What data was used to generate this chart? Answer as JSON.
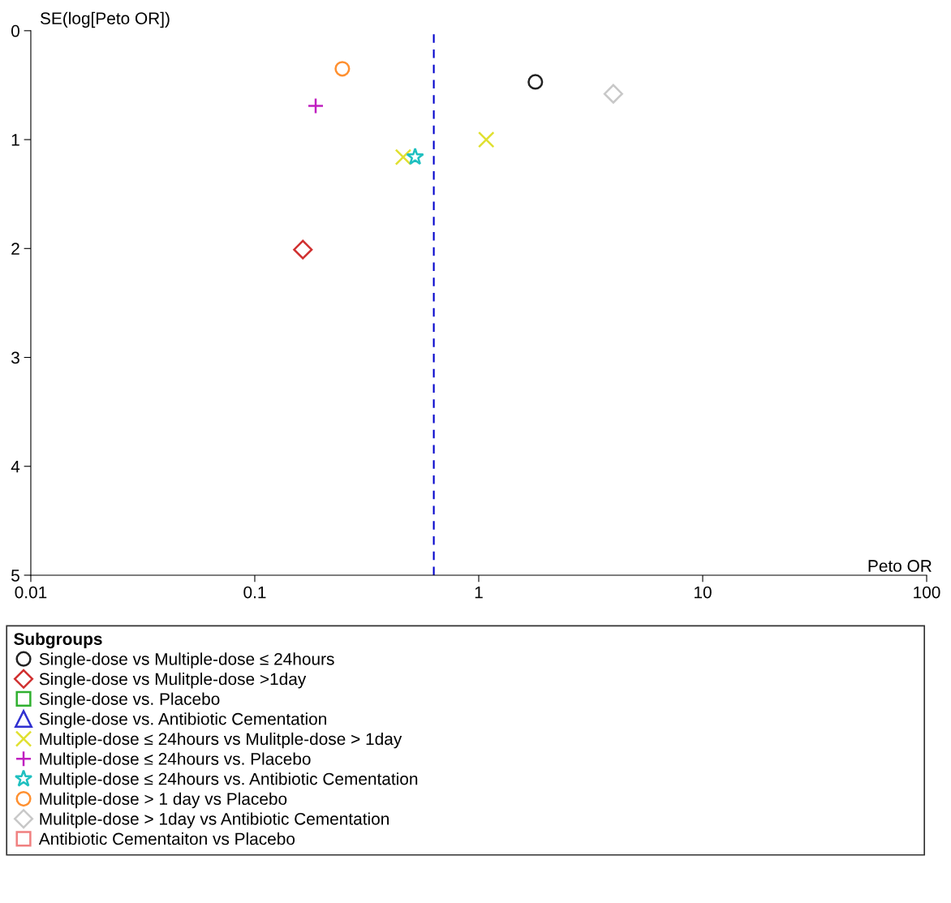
{
  "chart_data": {
    "type": "scatter",
    "xlabel": "Peto OR",
    "ylabel": "SE(log[Peto OR])",
    "legend_title": "Subgroups",
    "legend": "bottom",
    "log": "x",
    "grid": false,
    "xlim": [
      0.01,
      100
    ],
    "xticks": [
      0.01,
      0.1,
      1,
      10,
      100
    ],
    "ylim": [
      5,
      0
    ],
    "yticks": [
      0,
      1,
      2,
      3,
      4,
      5
    ],
    "ref_lines": [
      {
        "axis": "x",
        "value": 0.63,
        "color": "#0000cc",
        "line_style": "dashed"
      }
    ],
    "series": [
      {
        "name": "Single-dose vs Multiple-dose ≤ 24hours",
        "color": "#222222",
        "marker": "circle",
        "x": [
          1.79
        ],
        "values": [
          0.47
        ]
      },
      {
        "name": "Single-dose vs Mulitple-dose >1day",
        "color": "#d03030",
        "marker": "diamond",
        "x": [
          0.164
        ],
        "values": [
          2.01
        ]
      },
      {
        "name": "Single-dose vs. Placebo",
        "color": "#30b030",
        "marker": "square"
      },
      {
        "name": "Single-dose vs. Antibiotic Cementation",
        "color": "#3030d0",
        "marker": "triangle"
      },
      {
        "name": "Multiple-dose ≤ 24hours vs Mulitple-dose > 1day",
        "color": "#e0e030",
        "marker": "cross",
        "x": [
          1.08,
          0.46
        ],
        "values": [
          1.0,
          1.16
        ]
      },
      {
        "name": "Multiple-dose ≤ 24hours vs. Placebo",
        "color": "#c020c0",
        "marker": "plus",
        "x": [
          0.187
        ],
        "values": [
          0.69
        ]
      },
      {
        "name": "Multiple-dose ≤ 24hours vs. Antibiotic Cementation",
        "color": "#20c0c0",
        "marker": "star",
        "x": [
          0.52
        ],
        "values": [
          1.16
        ]
      },
      {
        "name": "Mulitple-dose > 1 day vs Placebo",
        "color": "#ff9030",
        "marker": "circle",
        "x": [
          0.246
        ],
        "values": [
          0.35
        ]
      },
      {
        "name": "Mulitple-dose > 1day vs Antibiotic Cementation",
        "color": "#c8c8c8",
        "marker": "diamond",
        "x": [
          3.99
        ],
        "values": [
          0.58
        ]
      },
      {
        "name": "Antibiotic Cementaiton vs Placebo",
        "color": "#f08080",
        "marker": "square"
      }
    ]
  }
}
